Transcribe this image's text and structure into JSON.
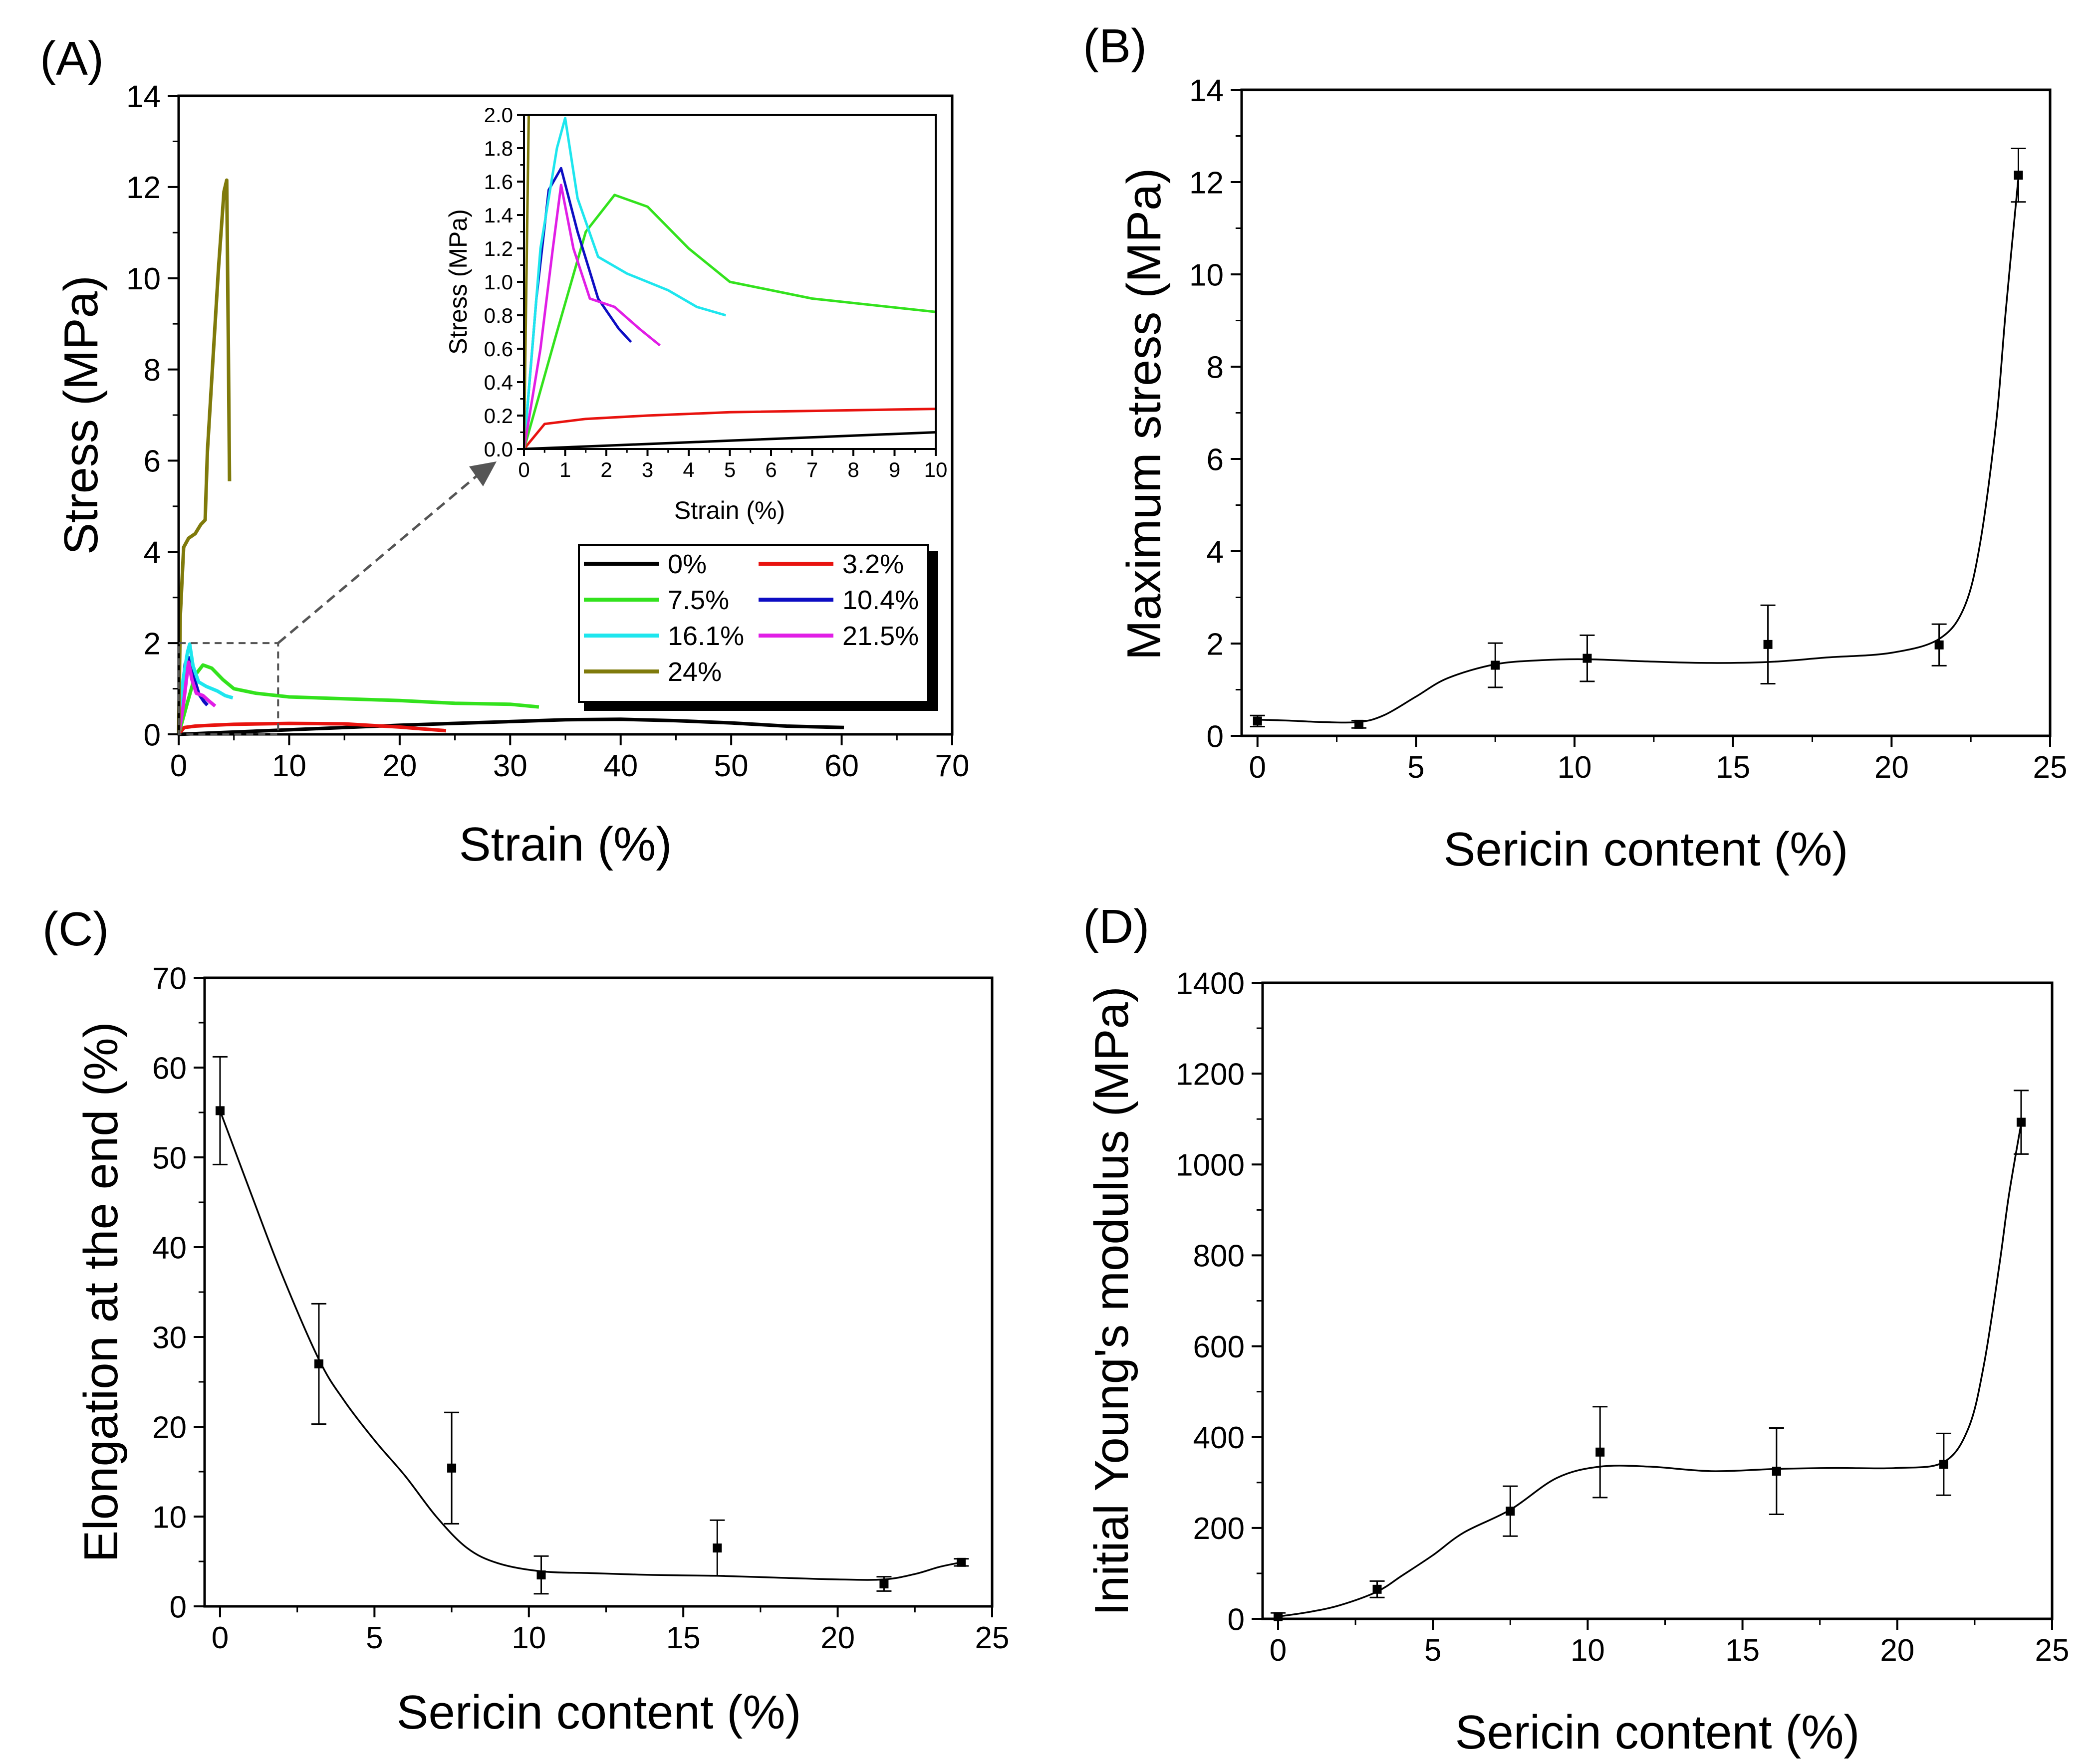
{
  "colors": {
    "0%": "#000000",
    "3.2%": "#e8130f",
    "7.5%": "#33e21d",
    "10.4%": "#0d0dc3",
    "16.1%": "#1ee6ee",
    "21.5%": "#e11ee6",
    "24%": "#7f7a0b",
    "fit_line": "#000000",
    "arrow": "#555555"
  },
  "chart_data": [
    {
      "panel": "(A)",
      "type": "line",
      "xlabel": "Strain (%)",
      "ylabel": "Stress (MPa)",
      "xlim": [
        0,
        70
      ],
      "ylim": [
        0,
        14
      ],
      "xticks": [
        "0",
        "10",
        "20",
        "30",
        "40",
        "50",
        "60",
        "70"
      ],
      "yticks": [
        "0",
        "2",
        "4",
        "6",
        "8",
        "10",
        "12",
        "14"
      ],
      "legend": [
        "0%",
        "3.2%",
        "7.5%",
        "10.4%",
        "16.1%",
        "21.5%",
        "24%"
      ],
      "legend_position": "lower-right",
      "series": [
        {
          "name": "0%",
          "x": [
            0,
            5,
            10,
            20,
            30,
            35,
            40,
            45,
            50,
            55,
            60.2
          ],
          "y": [
            0,
            0.05,
            0.1,
            0.2,
            0.28,
            0.32,
            0.33,
            0.3,
            0.25,
            0.18,
            0.15
          ]
        },
        {
          "name": "3.2%",
          "x": [
            0,
            0.5,
            1.5,
            3,
            5,
            10,
            15,
            20,
            22,
            24.2
          ],
          "y": [
            0,
            0.15,
            0.18,
            0.2,
            0.22,
            0.24,
            0.23,
            0.16,
            0.12,
            0.08
          ]
        },
        {
          "name": "7.5%",
          "x": [
            0,
            0.8,
            1.5,
            2.2,
            3,
            4,
            5,
            7,
            10,
            15,
            20,
            25,
            30,
            32.6
          ],
          "y": [
            0,
            0.7,
            1.3,
            1.52,
            1.45,
            1.2,
            1.0,
            0.9,
            0.82,
            0.78,
            0.74,
            0.68,
            0.66,
            0.6
          ]
        },
        {
          "name": "10.4%",
          "x": [
            0,
            0.3,
            0.6,
            0.9,
            1.3,
            1.8,
            2.3,
            2.6
          ],
          "y": [
            0,
            0.9,
            1.55,
            1.68,
            1.3,
            0.9,
            0.72,
            0.64
          ]
        },
        {
          "name": "16.1%",
          "x": [
            0,
            0.4,
            0.8,
            1.0,
            1.3,
            1.8,
            2.5,
            3.5,
            4.2,
            4.9
          ],
          "y": [
            0,
            1.2,
            1.8,
            1.98,
            1.5,
            1.15,
            1.05,
            0.95,
            0.85,
            0.8
          ]
        },
        {
          "name": "21.5%",
          "x": [
            0,
            0.4,
            0.7,
            0.9,
            1.2,
            1.6,
            2.2,
            2.8,
            3.3
          ],
          "y": [
            0,
            0.6,
            1.2,
            1.58,
            1.2,
            0.9,
            0.85,
            0.72,
            0.62
          ]
        },
        {
          "name": "24%",
          "x": [
            0,
            0.15,
            0.45,
            0.9,
            1.5,
            2.0,
            2.4,
            2.6,
            3.1,
            3.6,
            4.1,
            4.35,
            4.5,
            4.6
          ],
          "y": [
            0,
            2.6,
            4.1,
            4.3,
            4.4,
            4.6,
            4.7,
            6.2,
            8.2,
            10.2,
            11.9,
            12.15,
            8.5,
            5.55
          ]
        }
      ],
      "zoom_box": {
        "x": [
          0,
          9
        ],
        "y": [
          0,
          2
        ]
      },
      "inset": {
        "xlabel": "Strain (%)",
        "ylabel": "Stress (MPa)",
        "xlim": [
          0,
          10
        ],
        "ylim": [
          0,
          2.0
        ],
        "xticks": [
          "0",
          "1",
          "2",
          "3",
          "4",
          "5",
          "6",
          "7",
          "8",
          "9",
          "10"
        ],
        "yticks": [
          "0.0",
          "0.2",
          "0.4",
          "0.6",
          "0.8",
          "1.0",
          "1.2",
          "1.4",
          "1.6",
          "1.8",
          "2.0"
        ]
      }
    },
    {
      "panel": "(B)",
      "type": "scatter",
      "xlabel": "Sericin content (%)",
      "ylabel": "Maximum stress (MPa)",
      "xlim": [
        -0.5,
        25
      ],
      "ylim": [
        0,
        14
      ],
      "xticks": [
        "0",
        "5",
        "10",
        "15",
        "20",
        "25"
      ],
      "yticks": [
        "0",
        "2",
        "4",
        "6",
        "8",
        "10",
        "12",
        "14"
      ],
      "x": [
        0,
        3.2,
        7.5,
        10.4,
        16.1,
        21.5,
        24
      ],
      "y": [
        0.32,
        0.25,
        1.53,
        1.68,
        1.98,
        1.97,
        12.15
      ],
      "yerr": [
        0.12,
        0.08,
        0.48,
        0.5,
        0.85,
        0.45,
        0.58
      ],
      "fit": {
        "x": [
          0,
          1,
          2,
          3.2,
          4,
          5,
          6,
          7.5,
          9,
          10.4,
          12,
          14,
          16.1,
          18,
          20,
          21.5,
          22.3,
          22.8,
          23.3,
          23.6,
          24
        ],
        "y": [
          0.35,
          0.33,
          0.3,
          0.3,
          0.45,
          0.85,
          1.25,
          1.55,
          1.64,
          1.66,
          1.62,
          1.58,
          1.6,
          1.7,
          1.8,
          2.1,
          2.8,
          4.2,
          6.8,
          9.2,
          12.1
        ]
      }
    },
    {
      "panel": "(C)",
      "type": "scatter",
      "xlabel": "Sericin content (%)",
      "ylabel": "Elongation at the end (%)",
      "xlim": [
        -0.5,
        25
      ],
      "ylim": [
        0,
        70
      ],
      "xticks": [
        "0",
        "5",
        "10",
        "15",
        "20",
        "25"
      ],
      "yticks": [
        "0",
        "10",
        "20",
        "30",
        "40",
        "50",
        "60",
        "70"
      ],
      "x": [
        0,
        3.2,
        7.5,
        10.4,
        16.1,
        21.5,
        24
      ],
      "y": [
        55.2,
        27,
        15.4,
        3.5,
        6.5,
        2.5,
        4.9
      ],
      "yerr": [
        6,
        6.7,
        6.2,
        2.1,
        3.1,
        0.8,
        0.4
      ],
      "fit": {
        "x": [
          0,
          1,
          2,
          3.2,
          4,
          5,
          6,
          7,
          8,
          9,
          10.4,
          12,
          14,
          16.1,
          18,
          20,
          21.5,
          22.5,
          23.3,
          24
        ],
        "y": [
          55.2,
          46,
          37,
          27.5,
          23,
          18.5,
          14.5,
          10,
          6.5,
          4.8,
          3.9,
          3.7,
          3.5,
          3.4,
          3.2,
          3.0,
          3.0,
          3.6,
          4.4,
          4.9
        ]
      }
    },
    {
      "panel": "(D)",
      "type": "scatter",
      "xlabel": "Sericin content (%)",
      "ylabel": "Initial Young's modulus (MPa)",
      "xlim": [
        -0.5,
        25
      ],
      "ylim": [
        0,
        1400
      ],
      "xticks": [
        "0",
        "5",
        "10",
        "15",
        "20",
        "25"
      ],
      "yticks": [
        "0",
        "200",
        "400",
        "600",
        "800",
        "1000",
        "1200",
        "1400"
      ],
      "x": [
        0,
        3.2,
        7.5,
        10.4,
        16.1,
        21.5,
        24
      ],
      "y": [
        5,
        65,
        237,
        367,
        325,
        340,
        1093
      ],
      "yerr": [
        8,
        18,
        55,
        100,
        95,
        68,
        70
      ],
      "fit": {
        "x": [
          0,
          1,
          2,
          3.2,
          4,
          5,
          6,
          7.5,
          9,
          10.4,
          12,
          14,
          16.1,
          18,
          20,
          21.5,
          22.3,
          22.8,
          23.3,
          23.6,
          24
        ],
        "y": [
          5,
          15,
          30,
          60,
          95,
          140,
          190,
          240,
          310,
          335,
          335,
          325,
          330,
          332,
          332,
          345,
          420,
          560,
          780,
          930,
          1090
        ]
      }
    }
  ]
}
